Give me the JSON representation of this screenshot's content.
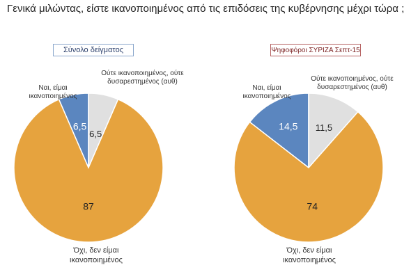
{
  "title": "Γενικά μιλώντας, είστε ικανοποιημένος από τις επιδόσεις της κυβέρνησης μέχρι τώρα ;",
  "chart_data": [
    {
      "type": "pie",
      "title": "Σύνολο δείγματος",
      "slices": [
        {
          "label": "Ναι, είμαι ικανοποιημένος",
          "value": 6.5,
          "display": "6,5",
          "color": "#5b86bf"
        },
        {
          "label": "Ούτε ικανοποιημένος, ούτε δυσαρεστημένος (αυθ)",
          "value": 6.5,
          "display": "6,5",
          "color": "#e0e0e0"
        },
        {
          "label": "Όχι, δεν είμαι ικανοποιημένος",
          "value": 87,
          "display": "87",
          "color": "#e6a33e"
        }
      ]
    },
    {
      "type": "pie",
      "title": "Ψηφοφόροι ΣΥΡΙΖΑ Σεπτ-15",
      "slices": [
        {
          "label": "Ναι, είμαι ικανοποιημένος",
          "value": 14.5,
          "display": "14,5",
          "color": "#5b86bf"
        },
        {
          "label": "Ούτε ικανοποιημένος, ούτε δυσαρεστημένος (αυθ)",
          "value": 11.5,
          "display": "11,5",
          "color": "#e0e0e0"
        },
        {
          "label": "Όχι, δεν είμαι ικανοποιημένος",
          "value": 74,
          "display": "74",
          "color": "#e6a33e"
        }
      ]
    }
  ],
  "labels": {
    "yes_line1": "Ναι, είμαι",
    "yes_line2": "ικανοποιημένος",
    "neutral_line1": "Ούτε ικανοποιημένος, ούτε",
    "neutral_line2": "δυσαρεστημένος (αυθ)",
    "no_line1": "Όχι, δεν είμαι",
    "no_line2": "ικανοποιημένος"
  }
}
